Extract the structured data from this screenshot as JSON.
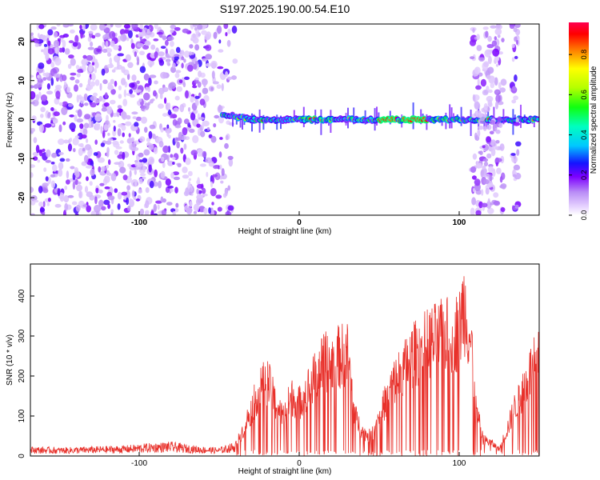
{
  "title": "S197.2025.190.00.54.E10",
  "chart_data": [
    {
      "type": "heatmap",
      "xlabel": "Height of straight line (km)",
      "ylabel": "Frequency (Hz)",
      "xlim": [
        -168,
        150
      ],
      "ylim": [
        -24.5,
        24.5
      ],
      "xticks": [
        -100,
        0,
        100
      ],
      "xtick_labels": [
        "-100",
        "0",
        "100"
      ],
      "yticks": [
        -20,
        -10,
        0,
        10,
        20
      ],
      "ytick_labels": [
        "-20",
        "-10",
        "0",
        "10",
        "20"
      ],
      "colorbar": {
        "label": "Normalized spectral amplitude",
        "range": [
          0.0,
          0.96
        ],
        "ticks": [
          0.0,
          0.2,
          0.4,
          0.6,
          0.8
        ],
        "tick_labels": [
          "0.0",
          "0.2",
          "0.4",
          "0.6",
          "0.8"
        ]
      },
      "features": [
        {
          "kind": "noise-field",
          "x_range": [
            -168,
            -40
          ],
          "y_range": [
            -24.5,
            24.5
          ],
          "amplitude": [
            0.05,
            0.25
          ]
        },
        {
          "kind": "carrier-line",
          "x_range": [
            -48,
            150
          ],
          "frequency": 0.0,
          "amplitude": [
            0.3,
            0.96
          ]
        },
        {
          "kind": "noise-band",
          "x_range": [
            108,
            128
          ],
          "y_range": [
            -24.5,
            24.5
          ],
          "amplitude": [
            0.05,
            0.2
          ]
        },
        {
          "kind": "noise-band",
          "x_range": [
            133,
            137
          ],
          "y_range": [
            -24.5,
            24.5
          ],
          "amplitude": [
            0.05,
            0.25
          ]
        }
      ]
    },
    {
      "type": "line",
      "xlabel": "Height of straight line (km)",
      "ylabel": "SNR (10 * v/v)",
      "xlim": [
        -168,
        150
      ],
      "ylim": [
        0,
        480
      ],
      "xticks": [
        -100,
        0,
        100
      ],
      "xtick_labels": [
        "-100",
        "0",
        "100"
      ],
      "yticks": [
        0,
        100,
        200,
        300,
        400
      ],
      "ytick_labels": [
        "0",
        "100",
        "200",
        "300",
        "400"
      ],
      "series": [
        {
          "color": "#e8302a",
          "x": [
            -168,
            -150,
            -130,
            -110,
            -100,
            -90,
            -80,
            -70,
            -60,
            -50,
            -40,
            -35,
            -30,
            -25,
            -20,
            -15,
            -10,
            -5,
            0,
            5,
            10,
            15,
            20,
            25,
            30,
            35,
            40,
            45,
            50,
            55,
            60,
            65,
            70,
            75,
            80,
            85,
            90,
            95,
            100,
            103,
            105,
            108,
            110,
            115,
            120,
            125,
            130,
            135,
            140,
            145,
            150
          ],
          "y": [
            20,
            18,
            20,
            22,
            25,
            28,
            30,
            24,
            20,
            18,
            30,
            80,
            140,
            200,
            230,
            160,
            120,
            180,
            160,
            200,
            240,
            280,
            290,
            300,
            310,
            120,
            70,
            60,
            120,
            180,
            230,
            260,
            300,
            320,
            340,
            350,
            360,
            370,
            380,
            460,
            410,
            320,
            150,
            50,
            40,
            20,
            80,
            150,
            200,
            260,
            290
          ]
        }
      ]
    }
  ]
}
